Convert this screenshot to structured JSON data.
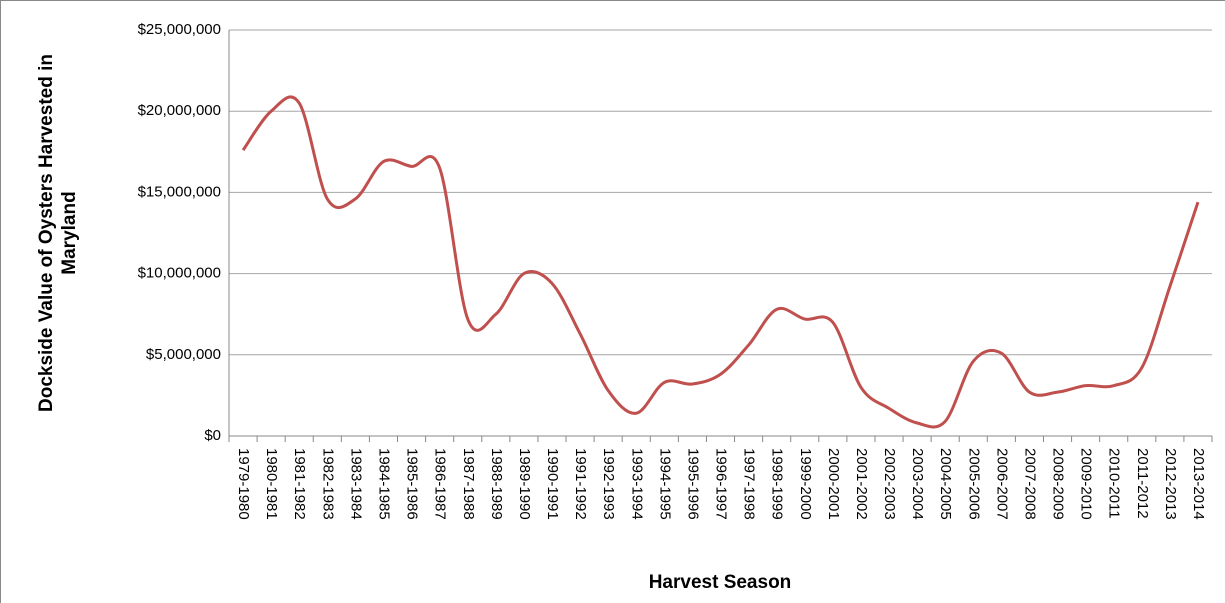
{
  "chart_data": {
    "type": "line",
    "x_label": "Harvest Season",
    "y_label": "Dockside Value of Oysters Harvested in Maryland",
    "categories": [
      "1979-1980",
      "1980-1981",
      "1981-1982",
      "1982-1983",
      "1983-1984",
      "1984-1985",
      "1985-1986",
      "1986-1987",
      "1987-1988",
      "1988-1989",
      "1989-1990",
      "1990-1991",
      "1991-1992",
      "1992-1993",
      "1993-1994",
      "1994-1995",
      "1995-1996",
      "1996-1997",
      "1997-1998",
      "1998-1999",
      "1999-2000",
      "2000-2001",
      "2001-2002",
      "2002-2003",
      "2003-2004",
      "2004-2005",
      "2005-2006",
      "2006-2007",
      "2007-2008",
      "2008-2009",
      "2009-2010",
      "2010-2011",
      "2011-2012",
      "2012-2013",
      "2013-2014"
    ],
    "series": [
      {
        "color": "#c0504d",
        "values": [
          17600000,
          20000000,
          20500000,
          14600000,
          14600000,
          16900000,
          16600000,
          16500000,
          7200000,
          7500000,
          10000000,
          9400000,
          6300000,
          2800000,
          1400000,
          3300000,
          3200000,
          3800000,
          5600000,
          7800000,
          7200000,
          7000000,
          3000000,
          1700000,
          800000,
          900000,
          4600000,
          5100000,
          2700000,
          2700000,
          3100000,
          3100000,
          4200000,
          9200000,
          14400000
        ]
      }
    ],
    "ylim": [
      0,
      25000000
    ],
    "yticks": [
      {
        "value": 0,
        "label": "$0"
      },
      {
        "value": 5000000,
        "label": "$5,000,000"
      },
      {
        "value": 10000000,
        "label": "$10,000,000"
      },
      {
        "value": 15000000,
        "label": "$15,000,000"
      },
      {
        "value": 20000000,
        "label": "$20,000,000"
      },
      {
        "value": 25000000,
        "label": "$25,000,000"
      }
    ],
    "grid": true
  }
}
